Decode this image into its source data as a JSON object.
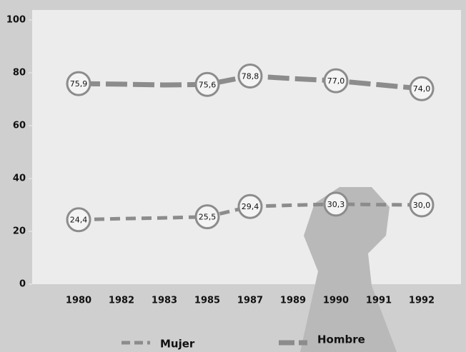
{
  "chart_data": {
    "type": "line",
    "categories": [
      "1980",
      "1982",
      "1983",
      "1985",
      "1987",
      "1989",
      "1990",
      "1991",
      "1992"
    ],
    "series": [
      {
        "name": "Mujer",
        "color": "#8c8c8c",
        "dash": "dashed",
        "values": [
          24.4,
          24.8,
          25.1,
          25.5,
          29.4,
          29.9,
          30.3,
          30.1,
          30.0
        ],
        "value_labels": [
          "24,4",
          null,
          null,
          "25,5",
          "29,4",
          null,
          "30,3",
          null,
          "30,0"
        ]
      },
      {
        "name": "Hombre",
        "color": "#8c8c8c",
        "dash": "thick-dashed",
        "values": [
          75.9,
          75.7,
          75.4,
          75.6,
          78.8,
          77.8,
          77.0,
          75.5,
          74.0
        ],
        "value_labels": [
          "75,9",
          null,
          null,
          "75,6",
          "78,8",
          null,
          "77,0",
          null,
          "74,0"
        ]
      }
    ],
    "ylim": [
      0,
      100
    ],
    "yticks": [
      0,
      20,
      40,
      60,
      80,
      100
    ],
    "legend": "bottom"
  }
}
